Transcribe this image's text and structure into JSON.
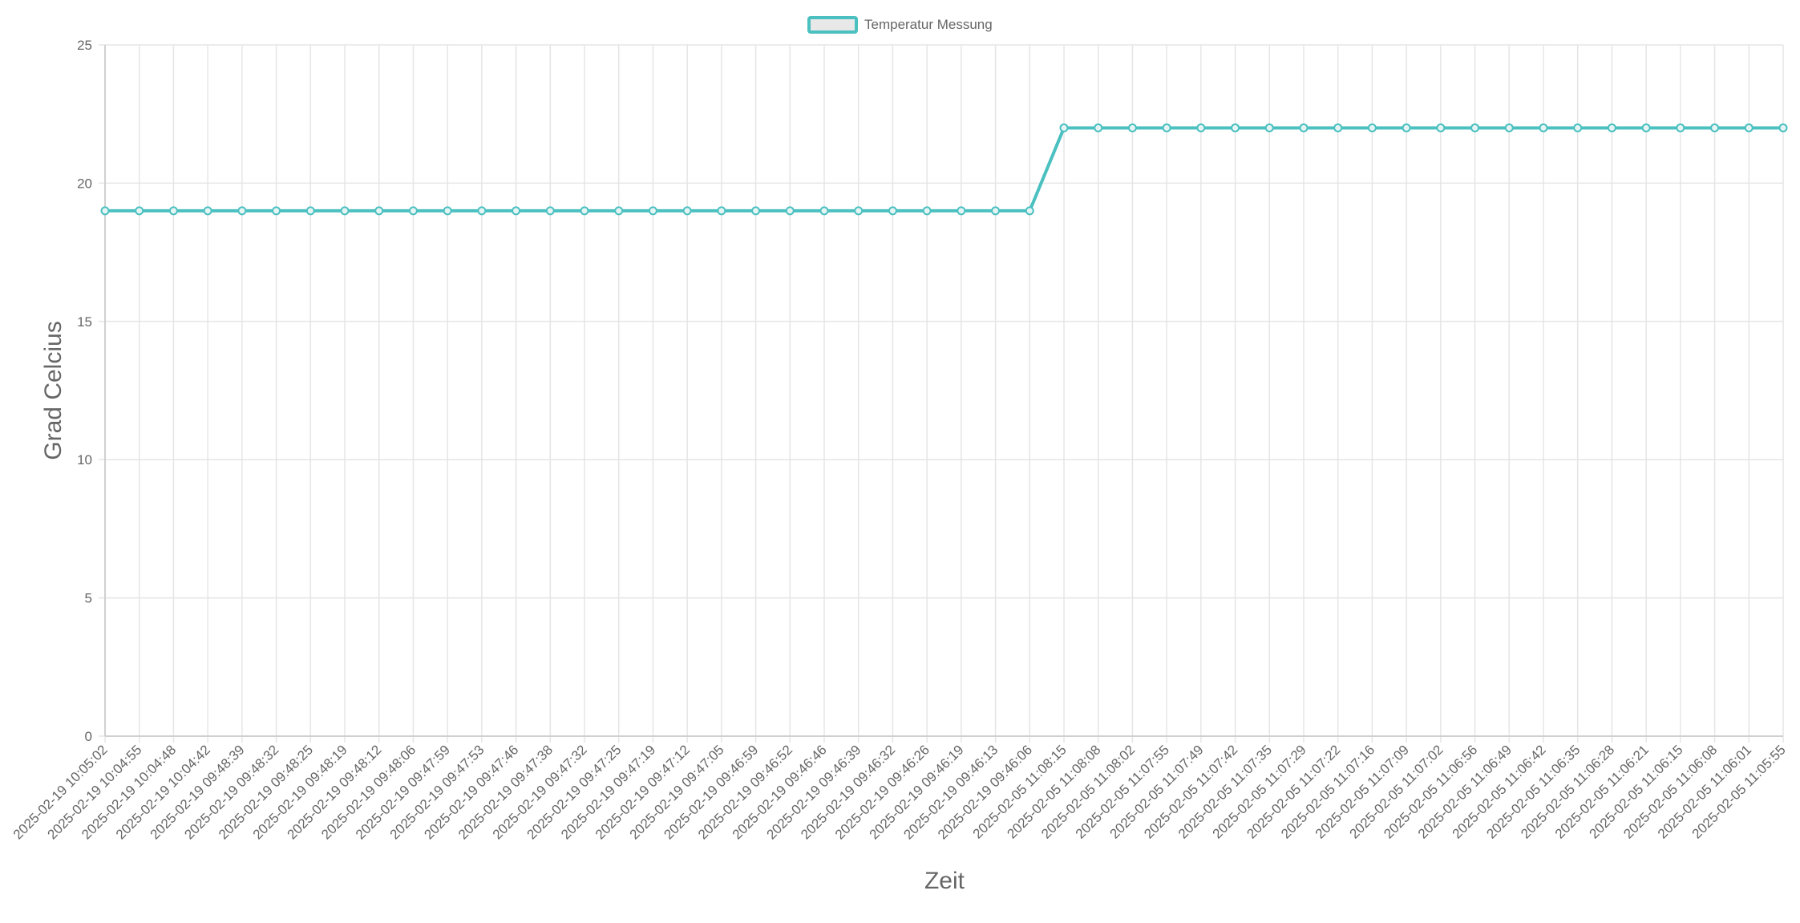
{
  "chart_data": {
    "type": "line",
    "legend": {
      "position": "top-center",
      "label": "Temperatur Messung"
    },
    "xlabel": "Zeit",
    "ylabel": "Grad Celcius",
    "ylim": [
      0,
      25
    ],
    "yticks": [
      0,
      5,
      10,
      15,
      20,
      25
    ],
    "grid": true,
    "colors": {
      "line": "#4bc0c0",
      "legend_fill": "#e8e8e8",
      "grid": "#e5e5e5",
      "text": "#666666"
    },
    "categories": [
      "2025-02-19 10:05:02",
      "2025-02-19 10:04:55",
      "2025-02-19 10:04:48",
      "2025-02-19 10:04:42",
      "2025-02-19 09:48:39",
      "2025-02-19 09:48:32",
      "2025-02-19 09:48:25",
      "2025-02-19 09:48:19",
      "2025-02-19 09:48:12",
      "2025-02-19 09:48:06",
      "2025-02-19 09:47:59",
      "2025-02-19 09:47:53",
      "2025-02-19 09:47:46",
      "2025-02-19 09:47:38",
      "2025-02-19 09:47:32",
      "2025-02-19 09:47:25",
      "2025-02-19 09:47:19",
      "2025-02-19 09:47:12",
      "2025-02-19 09:47:05",
      "2025-02-19 09:46:59",
      "2025-02-19 09:46:52",
      "2025-02-19 09:46:46",
      "2025-02-19 09:46:39",
      "2025-02-19 09:46:32",
      "2025-02-19 09:46:26",
      "2025-02-19 09:46:19",
      "2025-02-19 09:46:13",
      "2025-02-19 09:46:06",
      "2025-02-05 11:08:15",
      "2025-02-05 11:08:08",
      "2025-02-05 11:08:02",
      "2025-02-05 11:07:55",
      "2025-02-05 11:07:49",
      "2025-02-05 11:07:42",
      "2025-02-05 11:07:35",
      "2025-02-05 11:07:29",
      "2025-02-05 11:07:22",
      "2025-02-05 11:07:16",
      "2025-02-05 11:07:09",
      "2025-02-05 11:07:02",
      "2025-02-05 11:06:56",
      "2025-02-05 11:06:49",
      "2025-02-05 11:06:42",
      "2025-02-05 11:06:35",
      "2025-02-05 11:06:28",
      "2025-02-05 11:06:21",
      "2025-02-05 11:06:15",
      "2025-02-05 11:06:08",
      "2025-02-05 11:06:01",
      "2025-02-05 11:05:55"
    ],
    "series": [
      {
        "name": "Temperatur Messung",
        "values": [
          19,
          19,
          19,
          19,
          19,
          19,
          19,
          19,
          19,
          19,
          19,
          19,
          19,
          19,
          19,
          19,
          19,
          19,
          19,
          19,
          19,
          19,
          19,
          19,
          19,
          19,
          19,
          19,
          22,
          22,
          22,
          22,
          22,
          22,
          22,
          22,
          22,
          22,
          22,
          22,
          22,
          22,
          22,
          22,
          22,
          22,
          22,
          22,
          22,
          22
        ]
      }
    ]
  }
}
